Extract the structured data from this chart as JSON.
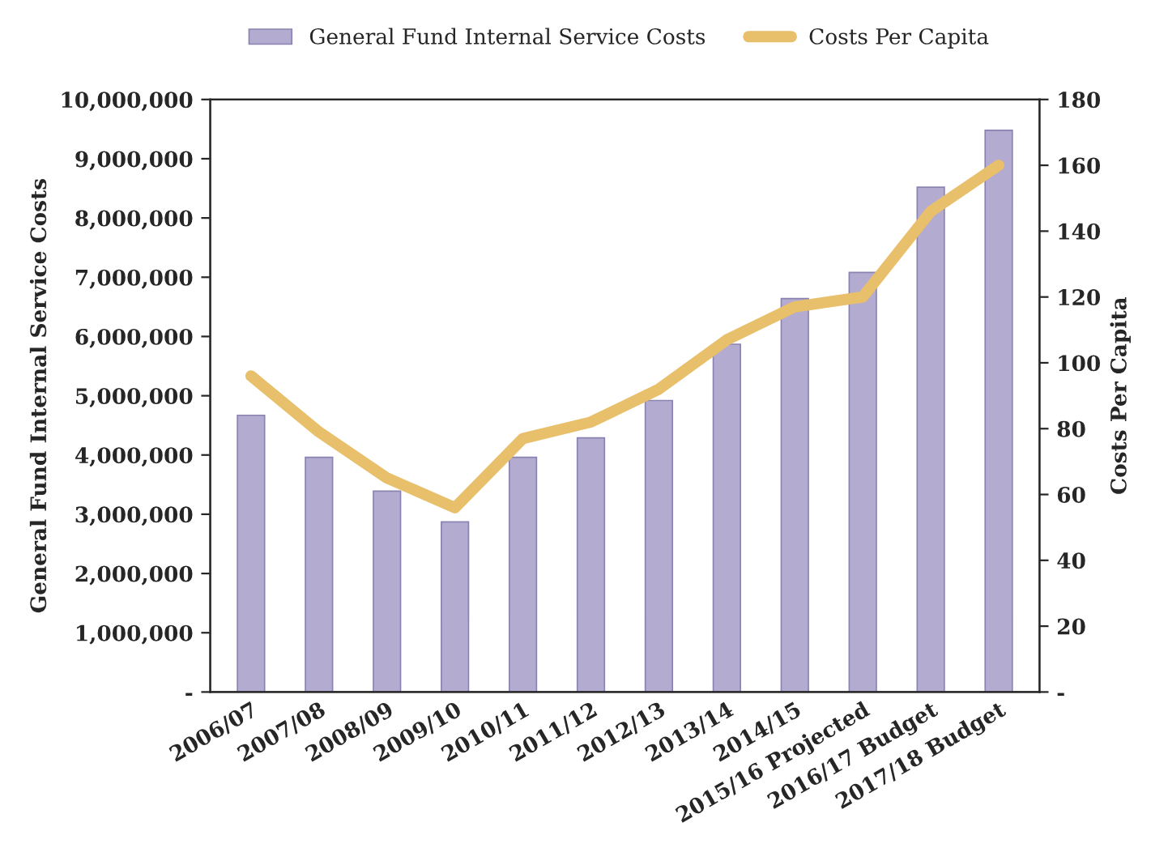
{
  "chart_data": {
    "type": "bar",
    "categories": [
      "2006/07",
      "2007/08",
      "2008/09",
      "2009/10",
      "2010/11",
      "2011/12",
      "2012/13",
      "2013/14",
      "2014/15",
      "2015/16 Projected",
      "2016/17 Budget",
      "2017/18 Budget"
    ],
    "series": [
      {
        "name": "General Fund Internal Service Costs",
        "color": "#b3acd0",
        "values": [
          4670000,
          3960000,
          3390000,
          2870000,
          3960000,
          4290000,
          4920000,
          5870000,
          6640000,
          7080000,
          8520000,
          9480000
        ]
      },
      {
        "name": "Costs Per Capita",
        "type": "line",
        "axis": "y2",
        "color": "#e8bf6a",
        "values": [
          96,
          79,
          65,
          56,
          77,
          82,
          92,
          107,
          117,
          120,
          146,
          160
        ]
      }
    ],
    "ylabel": "General Fund Internal Service Costs",
    "y2label": "Costs Per Capita",
    "ylim": [
      0,
      10000000
    ],
    "yticks": [
      {
        "value": 0,
        "label": "-"
      },
      {
        "value": 1000000,
        "label": "1,000,000"
      },
      {
        "value": 2000000,
        "label": "2,000,000"
      },
      {
        "value": 3000000,
        "label": "3,000,000"
      },
      {
        "value": 4000000,
        "label": "4,000,000"
      },
      {
        "value": 5000000,
        "label": "5,000,000"
      },
      {
        "value": 6000000,
        "label": "6,000,000"
      },
      {
        "value": 7000000,
        "label": "7,000,000"
      },
      {
        "value": 8000000,
        "label": "8,000,000"
      },
      {
        "value": 9000000,
        "label": "9,000,000"
      },
      {
        "value": 10000000,
        "label": "10,000,000"
      }
    ],
    "y2lim": [
      0,
      180
    ],
    "y2ticks": [
      {
        "value": 0,
        "label": "-"
      },
      20,
      40,
      60,
      80,
      100,
      120,
      140,
      160,
      180
    ],
    "legend": "top",
    "grid": false,
    "marker": "none",
    "line_style": "solid"
  }
}
